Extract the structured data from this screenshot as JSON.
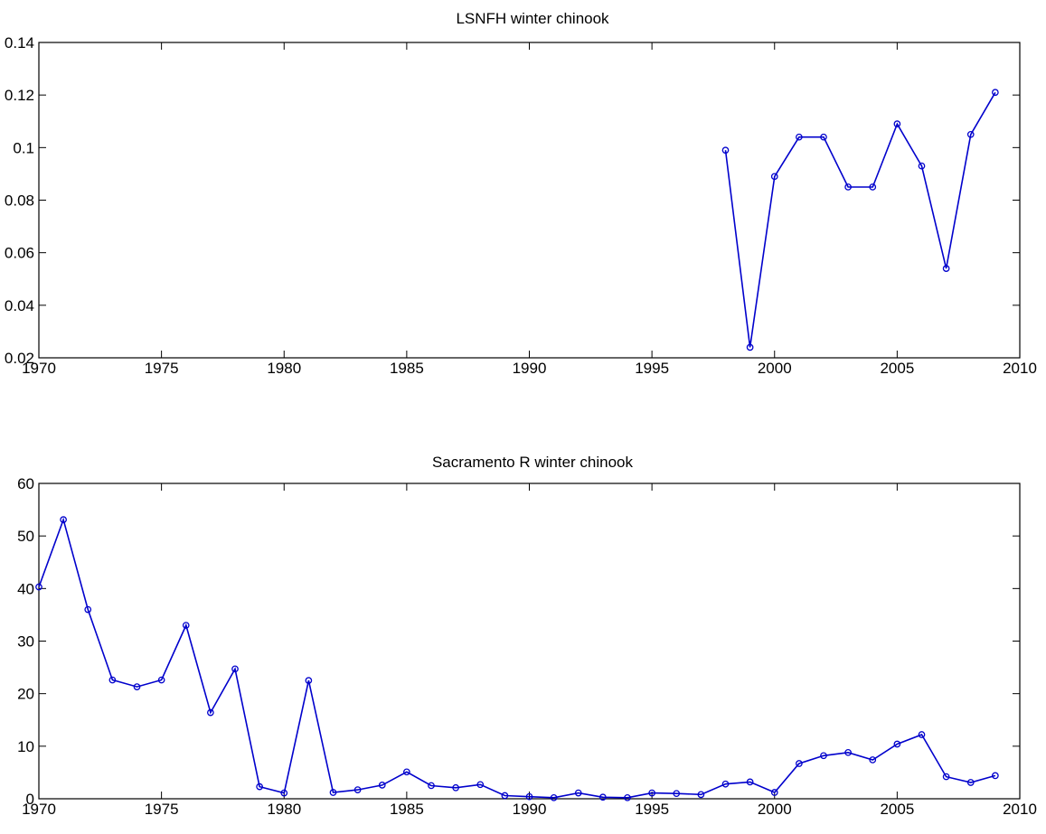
{
  "chart_data": [
    {
      "type": "line",
      "title": "LSNFH winter chinook",
      "xlabel": "",
      "ylabel": "",
      "xlim": [
        1970,
        2010
      ],
      "ylim": [
        0.02,
        0.14
      ],
      "xticks": [
        "1970",
        "1975",
        "1980",
        "1985",
        "1990",
        "1995",
        "2000",
        "2005",
        "2010"
      ],
      "yticks": [
        "0.02",
        "0.04",
        "0.06",
        "0.08",
        "0.1",
        "0.12",
        "0.14"
      ],
      "grid": false,
      "color": "#0000cc",
      "series": [
        {
          "x": [
            1998,
            1999,
            2000,
            2001,
            2002,
            2003,
            2004,
            2005,
            2006,
            2007,
            2008,
            2009
          ],
          "values": [
            0.099,
            0.024,
            0.089,
            0.104,
            0.104,
            0.085,
            0.085,
            0.109,
            0.093,
            0.054,
            0.105,
            0.121
          ]
        }
      ]
    },
    {
      "type": "line",
      "title": "Sacramento R winter chinook",
      "xlabel": "",
      "ylabel": "",
      "xlim": [
        1970,
        2010
      ],
      "ylim": [
        0,
        60
      ],
      "xticks": [
        "1970",
        "1975",
        "1980",
        "1985",
        "1990",
        "1995",
        "2000",
        "2005",
        "2010"
      ],
      "yticks": [
        "0",
        "10",
        "20",
        "30",
        "40",
        "50",
        "60"
      ],
      "grid": false,
      "color": "#0000cc",
      "series": [
        {
          "x": [
            1970,
            1971,
            1972,
            1973,
            1974,
            1975,
            1976,
            1977,
            1978,
            1979,
            1980,
            1981,
            1982,
            1983,
            1984,
            1985,
            1986,
            1987,
            1988,
            1989,
            1990,
            1991,
            1992,
            1993,
            1994,
            1995,
            1996,
            1997,
            1998,
            1999,
            2000,
            2001,
            2002,
            2003,
            2004,
            2005,
            2006,
            2007,
            2008,
            2009
          ],
          "values": [
            40.3,
            53.1,
            36.0,
            22.6,
            21.3,
            22.6,
            33.0,
            16.4,
            24.7,
            2.3,
            1.1,
            22.5,
            1.2,
            1.7,
            2.6,
            5.1,
            2.5,
            2.1,
            2.7,
            0.6,
            0.4,
            0.2,
            1.1,
            0.3,
            0.2,
            1.1,
            1.0,
            0.8,
            2.8,
            3.2,
            1.2,
            6.7,
            8.2,
            8.8,
            7.4,
            10.4,
            12.2,
            4.2,
            3.1,
            4.4
          ]
        }
      ]
    }
  ]
}
